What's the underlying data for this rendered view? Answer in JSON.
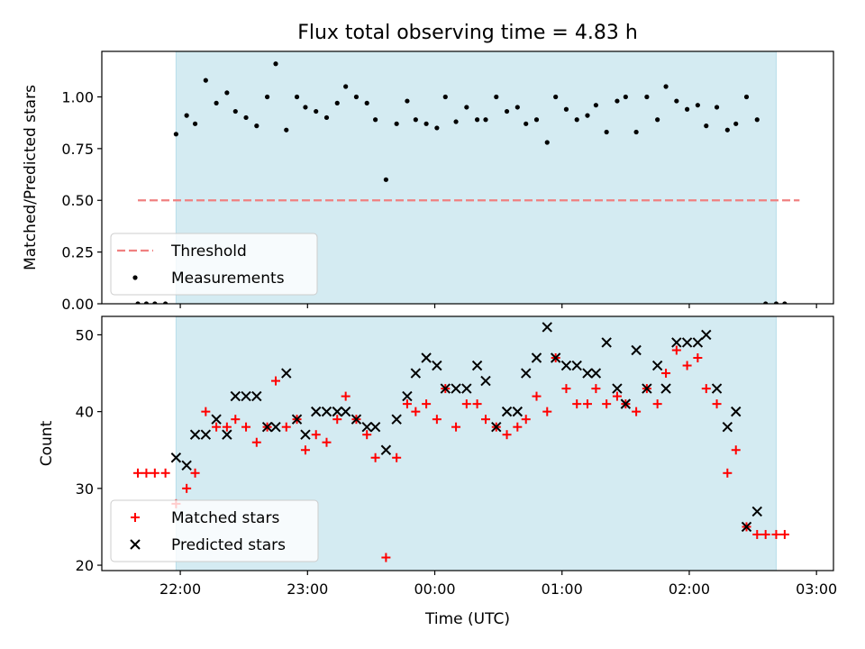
{
  "figure": {
    "title": "Flux total observing time = 4.83 h",
    "colors": {
      "shade": "#add8e6",
      "threshold": "#f08080",
      "measurement": "#000000",
      "matched": "#ff0000",
      "predicted": "#000000"
    }
  },
  "chart_data": [
    {
      "type": "scatter",
      "ylabel": "Matched/Predicted stars",
      "ylim": [
        0,
        1.22
      ],
      "xlim": [
        "21:23",
        "03:08"
      ],
      "yticks": [
        0,
        0.25,
        0.5,
        0.75,
        1.0
      ],
      "ytick_labels": [
        "0.00",
        "0.25",
        "0.50",
        "0.75",
        "1.00"
      ],
      "shaded_range": [
        "21:58",
        "02:41"
      ],
      "legend": {
        "placement": "lower-left",
        "entries": [
          "Threshold",
          "Measurements"
        ]
      },
      "threshold": {
        "name": "Threshold",
        "value": 0.5,
        "x_range": [
          "21:40",
          "02:52"
        ],
        "style": "dashed"
      },
      "series": [
        {
          "name": "Measurements",
          "marker": "dot",
          "points": [
            [
              "21:40",
              0
            ],
            [
              "21:44",
              0
            ],
            [
              "21:48",
              0
            ],
            [
              "21:53",
              0
            ],
            [
              "21:58",
              0.82
            ],
            [
              "22:03",
              0.91
            ],
            [
              "22:07",
              0.87
            ],
            [
              "22:12",
              1.08
            ],
            [
              "22:17",
              0.97
            ],
            [
              "22:22",
              1.02
            ],
            [
              "22:26",
              0.93
            ],
            [
              "22:31",
              0.9
            ],
            [
              "22:36",
              0.86
            ],
            [
              "22:41",
              1.0
            ],
            [
              "22:45",
              1.16
            ],
            [
              "22:50",
              0.84
            ],
            [
              "22:55",
              1.0
            ],
            [
              "22:59",
              0.95
            ],
            [
              "23:04",
              0.93
            ],
            [
              "23:09",
              0.9
            ],
            [
              "23:14",
              0.97
            ],
            [
              "23:18",
              1.05
            ],
            [
              "23:23",
              1.0
            ],
            [
              "23:28",
              0.97
            ],
            [
              "23:32",
              0.89
            ],
            [
              "23:37",
              0.6
            ],
            [
              "23:42",
              0.87
            ],
            [
              "23:47",
              0.98
            ],
            [
              "23:51",
              0.89
            ],
            [
              "23:56",
              0.87
            ],
            [
              "00:01",
              0.85
            ],
            [
              "00:05",
              1.0
            ],
            [
              "00:10",
              0.88
            ],
            [
              "00:15",
              0.95
            ],
            [
              "00:20",
              0.89
            ],
            [
              "00:24",
              0.89
            ],
            [
              "00:29",
              1.0
            ],
            [
              "00:34",
              0.93
            ],
            [
              "00:39",
              0.95
            ],
            [
              "00:43",
              0.87
            ],
            [
              "00:48",
              0.89
            ],
            [
              "00:53",
              0.78
            ],
            [
              "00:57",
              1.0
            ],
            [
              "01:02",
              0.94
            ],
            [
              "01:07",
              0.89
            ],
            [
              "01:12",
              0.91
            ],
            [
              "01:16",
              0.96
            ],
            [
              "01:21",
              0.83
            ],
            [
              "01:26",
              0.98
            ],
            [
              "01:30",
              1.0
            ],
            [
              "01:35",
              0.83
            ],
            [
              "01:40",
              1.0
            ],
            [
              "01:45",
              0.89
            ],
            [
              "01:49",
              1.05
            ],
            [
              "01:54",
              0.98
            ],
            [
              "01:59",
              0.94
            ],
            [
              "02:04",
              0.96
            ],
            [
              "02:08",
              0.86
            ],
            [
              "02:13",
              0.95
            ],
            [
              "02:18",
              0.84
            ],
            [
              "02:22",
              0.87
            ],
            [
              "02:27",
              1.0
            ],
            [
              "02:32",
              0.89
            ],
            [
              "02:36",
              0
            ],
            [
              "02:41",
              0
            ],
            [
              "02:45",
              0
            ]
          ]
        }
      ]
    },
    {
      "type": "scatter",
      "xlabel": "Time (UTC)",
      "ylabel": "Count",
      "ylim": [
        19.3,
        52.4
      ],
      "xlim": [
        "21:23",
        "03:08"
      ],
      "yticks": [
        20,
        30,
        40,
        50
      ],
      "xticks": [
        "22:00",
        "23:00",
        "00:00",
        "01:00",
        "02:00",
        "03:00"
      ],
      "shaded_range": [
        "21:58",
        "02:41"
      ],
      "legend": {
        "placement": "lower-left",
        "entries": [
          "Matched stars",
          "Predicted stars"
        ]
      },
      "series": [
        {
          "name": "Matched stars",
          "marker": "plus",
          "points": [
            [
              "21:40",
              32
            ],
            [
              "21:44",
              32
            ],
            [
              "21:48",
              32
            ],
            [
              "21:53",
              32
            ],
            [
              "21:58",
              28
            ],
            [
              "22:03",
              30
            ],
            [
              "22:07",
              32
            ],
            [
              "22:12",
              40
            ],
            [
              "22:17",
              38
            ],
            [
              "22:22",
              38
            ],
            [
              "22:26",
              39
            ],
            [
              "22:31",
              38
            ],
            [
              "22:36",
              36
            ],
            [
              "22:41",
              38
            ],
            [
              "22:45",
              44
            ],
            [
              "22:50",
              38
            ],
            [
              "22:55",
              39
            ],
            [
              "22:59",
              35
            ],
            [
              "23:04",
              37
            ],
            [
              "23:09",
              36
            ],
            [
              "23:14",
              39
            ],
            [
              "23:18",
              42
            ],
            [
              "23:23",
              39
            ],
            [
              "23:28",
              37
            ],
            [
              "23:32",
              34
            ],
            [
              "23:37",
              21
            ],
            [
              "23:42",
              34
            ],
            [
              "23:47",
              41
            ],
            [
              "23:51",
              40
            ],
            [
              "23:56",
              41
            ],
            [
              "00:01",
              39
            ],
            [
              "00:05",
              43
            ],
            [
              "00:10",
              38
            ],
            [
              "00:15",
              41
            ],
            [
              "00:20",
              41
            ],
            [
              "00:24",
              39
            ],
            [
              "00:29",
              38
            ],
            [
              "00:34",
              37
            ],
            [
              "00:39",
              38
            ],
            [
              "00:43",
              39
            ],
            [
              "00:48",
              42
            ],
            [
              "00:53",
              40
            ],
            [
              "00:57",
              47
            ],
            [
              "01:02",
              43
            ],
            [
              "01:07",
              41
            ],
            [
              "01:12",
              41
            ],
            [
              "01:16",
              43
            ],
            [
              "01:21",
              41
            ],
            [
              "01:26",
              42
            ],
            [
              "01:30",
              41
            ],
            [
              "01:35",
              40
            ],
            [
              "01:40",
              43
            ],
            [
              "01:45",
              41
            ],
            [
              "01:49",
              45
            ],
            [
              "01:54",
              48
            ],
            [
              "01:59",
              46
            ],
            [
              "02:04",
              47
            ],
            [
              "02:08",
              43
            ],
            [
              "02:13",
              41
            ],
            [
              "02:18",
              32
            ],
            [
              "02:22",
              35
            ],
            [
              "02:27",
              25
            ],
            [
              "02:32",
              24
            ],
            [
              "02:36",
              24
            ],
            [
              "02:41",
              24
            ],
            [
              "02:45",
              24
            ]
          ]
        },
        {
          "name": "Predicted stars",
          "marker": "x",
          "points": [
            [
              "21:58",
              34
            ],
            [
              "22:03",
              33
            ],
            [
              "22:07",
              37
            ],
            [
              "22:12",
              37
            ],
            [
              "22:17",
              39
            ],
            [
              "22:22",
              37
            ],
            [
              "22:26",
              42
            ],
            [
              "22:31",
              42
            ],
            [
              "22:36",
              42
            ],
            [
              "22:41",
              38
            ],
            [
              "22:45",
              38
            ],
            [
              "22:50",
              45
            ],
            [
              "22:55",
              39
            ],
            [
              "22:59",
              37
            ],
            [
              "23:04",
              40
            ],
            [
              "23:09",
              40
            ],
            [
              "23:14",
              40
            ],
            [
              "23:18",
              40
            ],
            [
              "23:23",
              39
            ],
            [
              "23:28",
              38
            ],
            [
              "23:32",
              38
            ],
            [
              "23:37",
              35
            ],
            [
              "23:42",
              39
            ],
            [
              "23:47",
              42
            ],
            [
              "23:51",
              45
            ],
            [
              "23:56",
              47
            ],
            [
              "00:01",
              46
            ],
            [
              "00:05",
              43
            ],
            [
              "00:10",
              43
            ],
            [
              "00:15",
              43
            ],
            [
              "00:20",
              46
            ],
            [
              "00:24",
              44
            ],
            [
              "00:29",
              38
            ],
            [
              "00:34",
              40
            ],
            [
              "00:39",
              40
            ],
            [
              "00:43",
              45
            ],
            [
              "00:48",
              47
            ],
            [
              "00:53",
              51
            ],
            [
              "00:57",
              47
            ],
            [
              "01:02",
              46
            ],
            [
              "01:07",
              46
            ],
            [
              "01:12",
              45
            ],
            [
              "01:16",
              45
            ],
            [
              "01:21",
              49
            ],
            [
              "01:26",
              43
            ],
            [
              "01:30",
              41
            ],
            [
              "01:35",
              48
            ],
            [
              "01:40",
              43
            ],
            [
              "01:45",
              46
            ],
            [
              "01:49",
              43
            ],
            [
              "01:54",
              49
            ],
            [
              "01:59",
              49
            ],
            [
              "02:04",
              49
            ],
            [
              "02:08",
              50
            ],
            [
              "02:13",
              43
            ],
            [
              "02:18",
              38
            ],
            [
              "02:22",
              40
            ],
            [
              "02:27",
              25
            ],
            [
              "02:32",
              27
            ]
          ]
        }
      ]
    }
  ]
}
